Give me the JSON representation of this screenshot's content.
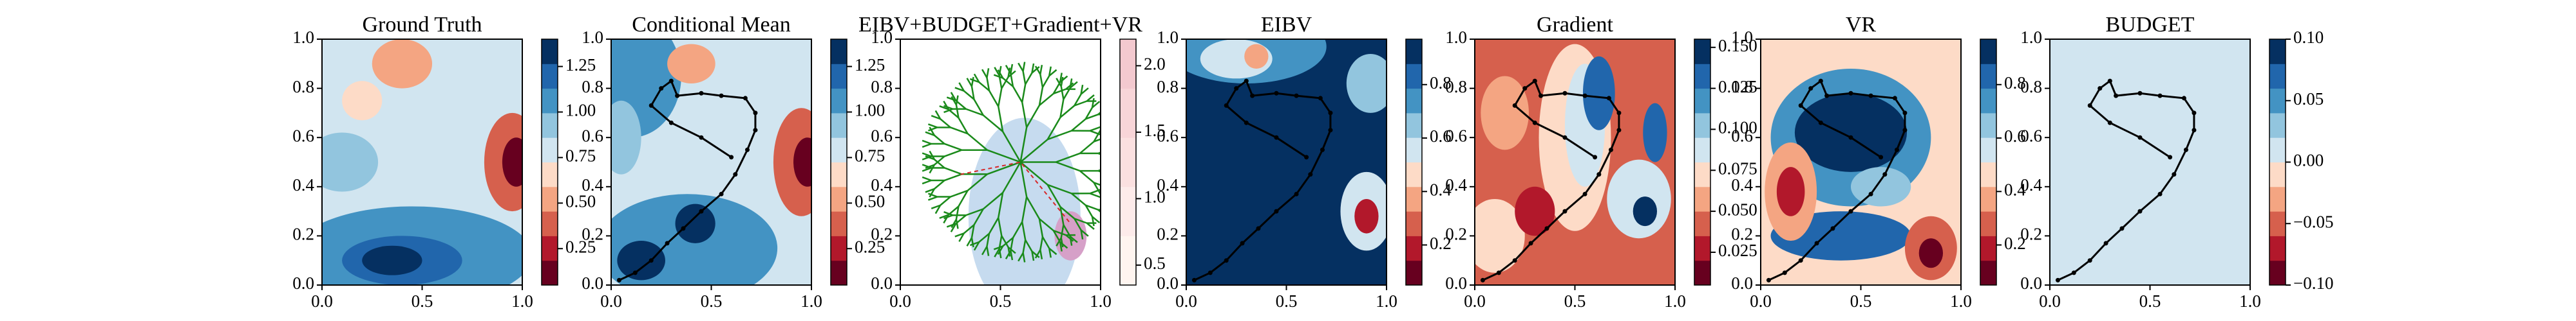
{
  "chart_data": [
    {
      "type": "heatmap",
      "title": "Ground Truth",
      "xlim": [
        0,
        1
      ],
      "ylim": [
        0,
        1
      ],
      "xticks": [
        {
          "value": 0,
          "label": "0.0"
        },
        0.5,
        {
          "value": 1,
          "label": "1.0"
        }
      ],
      "yticks": [
        {
          "value": 0,
          "label": "0.0"
        },
        0.2,
        0.4,
        0.6,
        0.8,
        {
          "value": 1,
          "label": "1.0"
        }
      ],
      "colorbar": {
        "lim": [
          0.05,
          1.4
        ],
        "ticks": [
          0.25,
          {
            "value": 0.5,
            "label": "0.50"
          },
          0.75,
          {
            "value": 1,
            "label": "1.00"
          },
          1.25
        ],
        "colors": [
          "#67001f",
          "#b2182b",
          "#d6604d",
          "#f4a582",
          "#fddbc7",
          "#d1e5f0",
          "#92c5de",
          "#4393c3",
          "#2166ac",
          "#053061"
        ]
      }
    },
    {
      "type": "heatmap",
      "title": "Conditional Mean",
      "xlim": [
        0,
        1
      ],
      "ylim": [
        0,
        1
      ],
      "xticks": [
        {
          "value": 0,
          "label": "0.0"
        },
        0.5,
        {
          "value": 1,
          "label": "1.0"
        }
      ],
      "yticks": [
        {
          "value": 0,
          "label": "0.0"
        },
        0.2,
        0.4,
        0.6,
        0.8,
        {
          "value": 1,
          "label": "1.0"
        }
      ],
      "colorbar": {
        "lim": [
          0.05,
          1.4
        ],
        "ticks": [
          0.25,
          {
            "value": 0.5,
            "label": "0.50"
          },
          0.75,
          {
            "value": 1,
            "label": "1.00"
          },
          1.25
        ],
        "colors": [
          "#67001f",
          "#b2182b",
          "#d6604d",
          "#f4a582",
          "#fddbc7",
          "#d1e5f0",
          "#92c5de",
          "#4393c3",
          "#2166ac",
          "#053061"
        ]
      },
      "path_color": "#000000",
      "x": [
        0.04,
        0.12,
        0.2,
        0.28,
        0.36,
        0.45,
        0.55,
        0.62,
        0.68,
        0.72,
        0.72,
        0.67,
        0.55,
        0.45,
        0.33,
        0.3,
        0.25,
        0.2,
        0.3,
        0.45,
        0.6
      ],
      "y": [
        0.02,
        0.05,
        0.1,
        0.17,
        0.23,
        0.3,
        0.37,
        0.45,
        0.55,
        0.63,
        0.7,
        0.76,
        0.77,
        0.78,
        0.77,
        0.83,
        0.8,
        0.73,
        0.66,
        0.6,
        0.52
      ]
    },
    {
      "type": "heatmap",
      "title": "EIBV+BUDGET+Gradient+VR",
      "xlim": [
        0,
        1
      ],
      "ylim": [
        0,
        1
      ],
      "xticks": [
        {
          "value": 0,
          "label": "0.0"
        },
        0.5,
        {
          "value": 1,
          "label": "1.0"
        }
      ],
      "yticks": [
        {
          "value": 0,
          "label": "0.0"
        },
        0.2,
        0.4,
        0.6,
        0.8,
        {
          "value": 1,
          "label": "1.0"
        }
      ],
      "colorbar": {
        "lim": [
          0.35,
          2.2
        ],
        "ticks": [
          0.5,
          {
            "value": 1,
            "label": "1.0"
          },
          1.5,
          {
            "value": 2,
            "label": "2.0"
          }
        ],
        "colors": [
          "#fff5f0",
          "#fdebea",
          "#fbe0e0",
          "#f8d5d8",
          "#f3c9cf"
        ]
      }
    },
    {
      "type": "heatmap",
      "title": "EIBV",
      "xlim": [
        0,
        1
      ],
      "ylim": [
        0,
        1
      ],
      "xticks": [
        {
          "value": 0,
          "label": "0.0"
        },
        0.5,
        {
          "value": 1,
          "label": "1.0"
        }
      ],
      "yticks": [
        {
          "value": 0,
          "label": "0.0"
        },
        0.2,
        0.4,
        0.6,
        0.8,
        {
          "value": 1,
          "label": "1.0"
        }
      ],
      "colorbar": {
        "lim": [
          0.05,
          0.97
        ],
        "ticks": [
          0.2,
          0.4,
          0.6,
          0.8
        ],
        "colors": [
          "#67001f",
          "#b2182b",
          "#d6604d",
          "#f4a582",
          "#fddbc7",
          "#d1e5f0",
          "#92c5de",
          "#4393c3",
          "#2166ac",
          "#053061"
        ]
      },
      "path_color": "#000000",
      "x": [
        0.04,
        0.12,
        0.2,
        0.28,
        0.36,
        0.45,
        0.55,
        0.62,
        0.68,
        0.72,
        0.72,
        0.67,
        0.55,
        0.45,
        0.33,
        0.3,
        0.25,
        0.2,
        0.3,
        0.45,
        0.6
      ],
      "y": [
        0.02,
        0.05,
        0.1,
        0.17,
        0.23,
        0.3,
        0.37,
        0.45,
        0.55,
        0.63,
        0.7,
        0.76,
        0.77,
        0.78,
        0.77,
        0.83,
        0.8,
        0.73,
        0.66,
        0.6,
        0.52
      ]
    },
    {
      "type": "heatmap",
      "title": "Gradient",
      "xlim": [
        0,
        1
      ],
      "ylim": [
        0,
        1
      ],
      "xticks": [
        {
          "value": 0,
          "label": "0.0"
        },
        0.5,
        {
          "value": 1,
          "label": "1.0"
        }
      ],
      "yticks": [
        {
          "value": 0,
          "label": "0.0"
        },
        0.2,
        0.4,
        0.6,
        0.8,
        {
          "value": 1,
          "label": "1.0"
        }
      ],
      "colorbar": {
        "lim": [
          0.005,
          0.155
        ],
        "ticks": [
          0.025,
          {
            "value": 0.05,
            "label": "0.050"
          },
          0.075,
          {
            "value": 0.1,
            "label": "0.100"
          },
          0.125,
          {
            "value": 0.15,
            "label": "0.150"
          }
        ],
        "colors": [
          "#67001f",
          "#b2182b",
          "#d6604d",
          "#f4a582",
          "#fddbc7",
          "#d1e5f0",
          "#92c5de",
          "#4393c3",
          "#2166ac",
          "#053061"
        ]
      },
      "path_color": "#000000",
      "x": [
        0.04,
        0.12,
        0.2,
        0.28,
        0.36,
        0.45,
        0.55,
        0.62,
        0.68,
        0.72,
        0.72,
        0.67,
        0.55,
        0.45,
        0.33,
        0.3,
        0.25,
        0.2,
        0.3,
        0.45,
        0.6
      ],
      "y": [
        0.02,
        0.05,
        0.1,
        0.17,
        0.23,
        0.3,
        0.37,
        0.45,
        0.55,
        0.63,
        0.7,
        0.76,
        0.77,
        0.78,
        0.77,
        0.83,
        0.8,
        0.73,
        0.66,
        0.6,
        0.52
      ]
    },
    {
      "type": "heatmap",
      "title": "VR",
      "xlim": [
        0,
        1
      ],
      "ylim": [
        0,
        1
      ],
      "xticks": [
        {
          "value": 0,
          "label": "0.0"
        },
        0.5,
        {
          "value": 1,
          "label": "1.0"
        }
      ],
      "yticks": [
        {
          "value": 0,
          "label": "0.0"
        },
        0.2,
        0.4,
        0.6,
        0.8,
        {
          "value": 1,
          "label": "1.0"
        }
      ],
      "colorbar": {
        "lim": [
          0.05,
          0.97
        ],
        "ticks": [
          0.2,
          0.4,
          0.6,
          0.8
        ],
        "colors": [
          "#67001f",
          "#b2182b",
          "#d6604d",
          "#f4a582",
          "#fddbc7",
          "#d1e5f0",
          "#92c5de",
          "#4393c3",
          "#2166ac",
          "#053061"
        ]
      },
      "path_color": "#000000",
      "x": [
        0.04,
        0.12,
        0.2,
        0.28,
        0.36,
        0.45,
        0.55,
        0.62,
        0.68,
        0.72,
        0.72,
        0.67,
        0.55,
        0.45,
        0.33,
        0.3,
        0.25,
        0.2,
        0.3,
        0.45,
        0.6
      ],
      "y": [
        0.02,
        0.05,
        0.1,
        0.17,
        0.23,
        0.3,
        0.37,
        0.45,
        0.55,
        0.63,
        0.7,
        0.76,
        0.77,
        0.78,
        0.77,
        0.83,
        0.8,
        0.73,
        0.66,
        0.6,
        0.52
      ]
    },
    {
      "type": "heatmap",
      "title": "BUDGET",
      "xlim": [
        0,
        1
      ],
      "ylim": [
        0,
        1
      ],
      "xticks": [
        {
          "value": 0,
          "label": "0.0"
        },
        0.5,
        {
          "value": 1,
          "label": "1.0"
        }
      ],
      "yticks": [
        {
          "value": 0,
          "label": "0.0"
        },
        0.2,
        0.4,
        0.6,
        0.8,
        {
          "value": 1,
          "label": "1.0"
        }
      ],
      "colorbar": {
        "lim": [
          -0.1,
          0.1
        ],
        "ticks": [
          {
            "value": -0.1,
            "label": "−0.10"
          },
          {
            "value": -0.05,
            "label": "−0.05"
          },
          {
            "value": 0,
            "label": "0.00"
          },
          {
            "value": 0.05,
            "label": "0.05"
          },
          {
            "value": 0.1,
            "label": "0.10"
          }
        ],
        "colors": [
          "#67001f",
          "#b2182b",
          "#d6604d",
          "#f4a582",
          "#fddbc7",
          "#d1e5f0",
          "#92c5de",
          "#4393c3",
          "#2166ac",
          "#053061"
        ]
      },
      "path_color": "#000000",
      "x": [
        0.04,
        0.12,
        0.2,
        0.28,
        0.36,
        0.45,
        0.55,
        0.62,
        0.68,
        0.72,
        0.72,
        0.67,
        0.55,
        0.45,
        0.33,
        0.3,
        0.25,
        0.2,
        0.3,
        0.45,
        0.6
      ],
      "y": [
        0.02,
        0.05,
        0.1,
        0.17,
        0.23,
        0.3,
        0.37,
        0.45,
        0.55,
        0.63,
        0.7,
        0.76,
        0.77,
        0.78,
        0.77,
        0.83,
        0.8,
        0.73,
        0.66,
        0.6,
        0.52
      ]
    }
  ]
}
